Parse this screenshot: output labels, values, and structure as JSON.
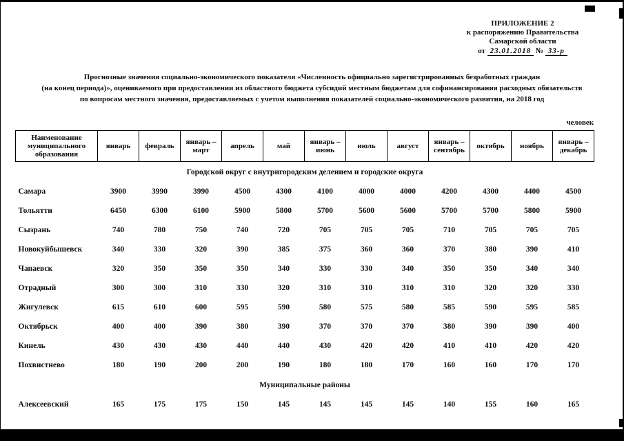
{
  "header": {
    "appendix": "ПРИЛОЖЕНИЕ 2",
    "line2": "к распоряжению Правительства",
    "line3": "Самарской области",
    "date_prefix": "от",
    "date_value": "23.01.2018",
    "number_prefix": "№",
    "number_value": "33-р"
  },
  "title": {
    "line1": "Прогнозные значения социально-экономического показателя «Численность официально зарегистрированных безработных граждан",
    "line2": "(на конец периода)», оцениваемого при предоставлении из областного бюджета субсидий местным бюджетам для софинансирования расходных обязательств",
    "line3": "по вопросам местного значения, предоставляемых с учетом выполнения показателей социально-экономического развития, на 2018 год"
  },
  "units_label": "человек",
  "table": {
    "columns": [
      "Наименование\nмуниципального\nобразования",
      "январь",
      "февраль",
      "январь –\nмарт",
      "апрель",
      "май",
      "январь –\nиюнь",
      "июль",
      "август",
      "январь –\nсентябрь",
      "октябрь",
      "ноябрь",
      "январь –\nдекабрь"
    ],
    "sections": [
      {
        "title": "Городской округ с внутригородским делением и городские округа",
        "rows": [
          {
            "name": "Самара",
            "values": [
              3900,
              3990,
              3990,
              4500,
              4300,
              4100,
              4000,
              4000,
              4200,
              4300,
              4400,
              4500
            ]
          },
          {
            "name": "Тольятти",
            "values": [
              6450,
              6300,
              6100,
              5900,
              5800,
              5700,
              5600,
              5600,
              5700,
              5700,
              5800,
              5900
            ]
          },
          {
            "name": "Сызрань",
            "values": [
              740,
              780,
              750,
              740,
              720,
              705,
              705,
              705,
              710,
              705,
              705,
              705
            ]
          },
          {
            "name": "Новокуйбышевск",
            "values": [
              340,
              330,
              320,
              390,
              385,
              375,
              360,
              360,
              370,
              380,
              390,
              410
            ]
          },
          {
            "name": "Чапаевск",
            "values": [
              320,
              350,
              350,
              350,
              340,
              330,
              330,
              340,
              350,
              350,
              340,
              340
            ]
          },
          {
            "name": "Отрадный",
            "values": [
              300,
              300,
              310,
              330,
              320,
              310,
              310,
              310,
              310,
              320,
              320,
              330
            ]
          },
          {
            "name": "Жигулевск",
            "values": [
              615,
              610,
              600,
              595,
              590,
              580,
              575,
              580,
              585,
              590,
              595,
              585
            ]
          },
          {
            "name": "Октябрьск",
            "values": [
              400,
              400,
              390,
              380,
              390,
              370,
              370,
              370,
              380,
              390,
              390,
              400
            ]
          },
          {
            "name": "Кинель",
            "values": [
              430,
              430,
              430,
              440,
              440,
              430,
              420,
              420,
              410,
              410,
              420,
              420
            ]
          },
          {
            "name": "Похвистнево",
            "values": [
              180,
              190,
              200,
              200,
              190,
              180,
              180,
              170,
              160,
              160,
              170,
              170
            ]
          }
        ]
      },
      {
        "title": "Муниципальные районы",
        "rows": [
          {
            "name": "Алексеевский",
            "values": [
              165,
              175,
              175,
              150,
              145,
              145,
              145,
              145,
              140,
              155,
              160,
              165
            ]
          }
        ]
      }
    ]
  }
}
